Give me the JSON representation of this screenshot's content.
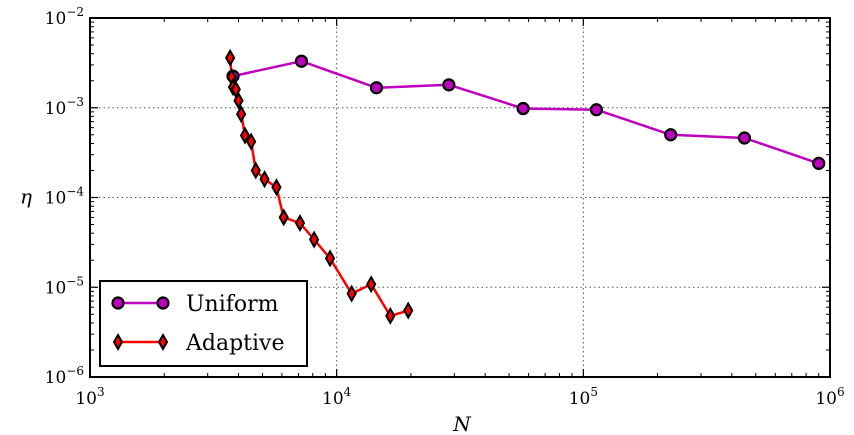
{
  "chart_data": {
    "type": "line",
    "xscale": "log",
    "yscale": "log",
    "xlim": [
      1000,
      1000000
    ],
    "ylim": [
      1e-06,
      0.01
    ],
    "xlabel": "N",
    "ylabel": "η",
    "grid": true,
    "legend_position": "bottom-left",
    "x_ticks": [
      {
        "value": 1000,
        "base": "10",
        "exp": "3"
      },
      {
        "value": 10000,
        "base": "10",
        "exp": "4"
      },
      {
        "value": 100000,
        "base": "10",
        "exp": "5"
      },
      {
        "value": 1000000,
        "base": "10",
        "exp": "6"
      }
    ],
    "y_ticks": [
      {
        "value": 1e-06,
        "base": "10",
        "exp": "−6"
      },
      {
        "value": 1e-05,
        "base": "10",
        "exp": "−5"
      },
      {
        "value": 0.0001,
        "base": "10",
        "exp": "−4"
      },
      {
        "value": 0.001,
        "base": "10",
        "exp": "−3"
      },
      {
        "value": 0.01,
        "base": "10",
        "exp": "−2"
      }
    ],
    "series": [
      {
        "name": "Uniform",
        "color": "#bf00bf",
        "marker": "circle",
        "x": [
          3800,
          7200,
          14500,
          28500,
          57000,
          113000,
          226000,
          450000,
          900000
        ],
        "y": [
          0.00225,
          0.0033,
          0.00167,
          0.0018,
          0.00098,
          0.00095,
          0.0005,
          0.00046,
          0.00024
        ]
      },
      {
        "name": "Adaptive",
        "color": "#ff0000",
        "marker": "diamond",
        "x": [
          3700,
          3750,
          3800,
          3900,
          4000,
          4100,
          4250,
          4500,
          4700,
          5100,
          5700,
          6100,
          7100,
          8100,
          9400,
          11500,
          13800,
          16500,
          19500
        ],
        "y": [
          0.0036,
          0.0022,
          0.0017,
          0.0016,
          0.0012,
          0.00085,
          0.00049,
          0.00042,
          0.0002,
          0.00016,
          0.00013,
          6e-05,
          5.2e-05,
          3.4e-05,
          2.1e-05,
          8.5e-06,
          1.08e-05,
          4.8e-06,
          5.5e-06
        ]
      }
    ]
  }
}
